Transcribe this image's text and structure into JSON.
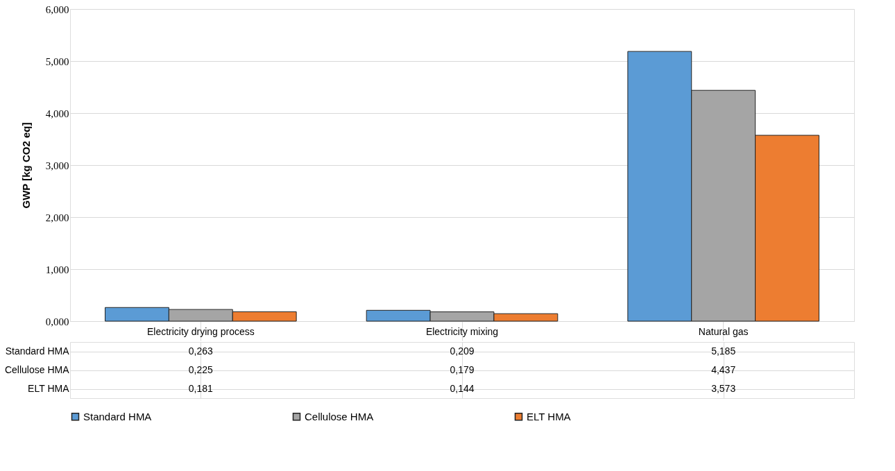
{
  "chart_data": {
    "type": "bar",
    "ylabel": "GWP [kg CO2 eq]",
    "categories": [
      "Electricity drying process",
      "Electricity mixing",
      "Natural gas"
    ],
    "series": [
      {
        "name": "Standard HMA",
        "color": "#5b9bd5",
        "values": [
          0.263,
          0.209,
          5.185
        ],
        "value_labels": [
          "0,263",
          "0,209",
          "5,185"
        ]
      },
      {
        "name": "Cellulose HMA",
        "color": "#a5a5a5",
        "values": [
          0.225,
          0.179,
          4.437
        ],
        "value_labels": [
          "0,225",
          "0,179",
          "4,437"
        ]
      },
      {
        "name": "ELT HMA",
        "color": "#ed7d31",
        "values": [
          0.181,
          0.144,
          3.573
        ],
        "value_labels": [
          "0,181",
          "0,144",
          "3,573"
        ]
      }
    ],
    "ylim": [
      0,
      6
    ],
    "yticks": [
      {
        "value": 0,
        "label": "0,000"
      },
      {
        "value": 1,
        "label": "1,000"
      },
      {
        "value": 2,
        "label": "2,000"
      },
      {
        "value": 3,
        "label": "3,000"
      },
      {
        "value": 4,
        "label": "4,000"
      },
      {
        "value": 5,
        "label": "5,000"
      },
      {
        "value": 6,
        "label": "6,000"
      }
    ],
    "grid": "y",
    "legend": "bottom"
  }
}
